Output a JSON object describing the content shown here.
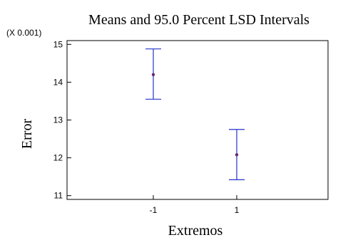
{
  "chart_data": {
    "type": "scatter",
    "title": "Means and 95.0 Percent LSD Intervals",
    "xlabel": "Extremos",
    "ylabel": "Error",
    "y_scale_note": "(X 0.001)",
    "categories": [
      "-1",
      "1"
    ],
    "means": [
      14.2,
      12.08
    ],
    "lower": [
      13.55,
      11.42
    ],
    "upper": [
      14.88,
      12.75
    ],
    "ylim": [
      10.9,
      15.1
    ],
    "yticks": [
      "11",
      "12",
      "13",
      "14",
      "15"
    ],
    "grid": false,
    "colors": {
      "interval": "#2233cc",
      "mean_point": "#6a2a6a",
      "frame": "#000000"
    }
  }
}
